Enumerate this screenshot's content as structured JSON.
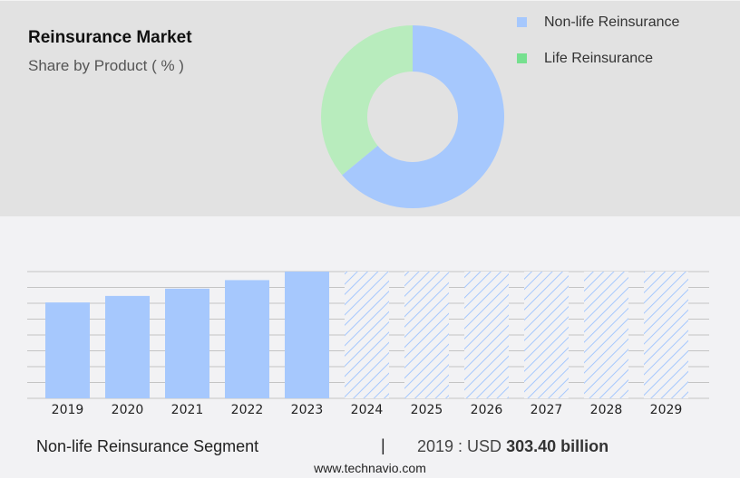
{
  "header": {
    "title": "Reinsurance Market",
    "subtitle": "Share by Product ( % )"
  },
  "legend": [
    {
      "label": "Non-life Reinsurance",
      "color": "#a6c8fd"
    },
    {
      "label": "Life Reinsurance",
      "color": "#76e08f"
    }
  ],
  "footer": {
    "segment": "Non-life Reinsurance Segment",
    "separator": "|",
    "value_prefix": "2019 : USD",
    "value_bold": "303.40 billion",
    "url": "www.technavio.com"
  },
  "colors": {
    "nonlife": "#a6c8fd",
    "life_slice": "#b8ecbd",
    "life_legend": "#76e08f",
    "top_bg": "#e2e2e2",
    "bottom_bg": "#f2f2f4",
    "gridline": "#c4c4c4"
  },
  "chart_data": [
    {
      "type": "pie",
      "title": "Reinsurance Market",
      "subtitle": "Share by Product ( % )",
      "donut": true,
      "categories": [
        "Non-life Reinsurance",
        "Life Reinsurance"
      ],
      "values": [
        64,
        36
      ],
      "legend_position": "top-right"
    },
    {
      "type": "bar",
      "title": "Non-life Reinsurance Segment",
      "categories": [
        "2019",
        "2020",
        "2021",
        "2022",
        "2023",
        "2024",
        "2025",
        "2026",
        "2027",
        "2028",
        "2029"
      ],
      "values": [
        303.4,
        324,
        347,
        374,
        401,
        null,
        null,
        null,
        null,
        null,
        null
      ],
      "forecast_years": [
        "2024",
        "2025",
        "2026",
        "2027",
        "2028",
        "2029"
      ],
      "forecast_style": "hatched",
      "xlabel": "",
      "ylabel": "",
      "grid": true,
      "annotation": "2019 : USD 303.40 billion"
    }
  ]
}
